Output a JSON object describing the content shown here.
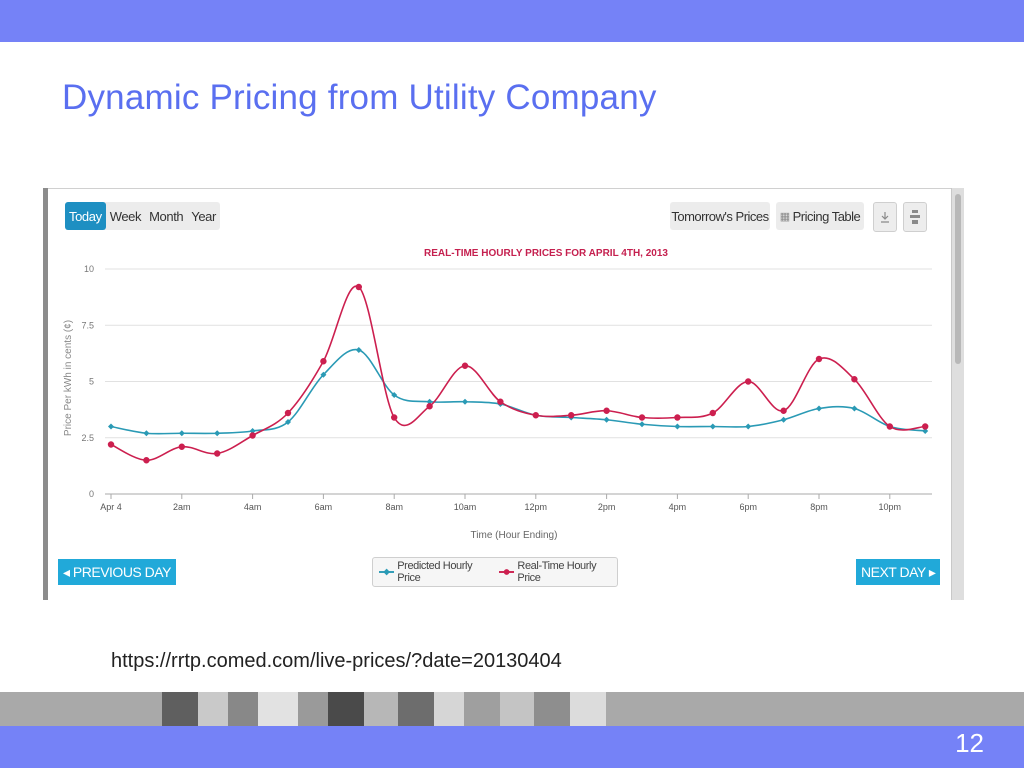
{
  "slide": {
    "title": "Dynamic Pricing from Utility Company",
    "url": "https://rrtp.comed.com/live-prices/?date=20130404",
    "page_number": "12"
  },
  "toolbar": {
    "ranges": [
      "Today",
      "Week",
      "Month",
      "Year"
    ],
    "active_range": "Today",
    "tomorrow_label": "Tomorrow's Prices",
    "pricing_table_label": "Pricing Table"
  },
  "nav": {
    "prev_label": "◂ PREVIOUS DAY",
    "next_label": "NEXT DAY ▸"
  },
  "colors": {
    "predicted": "#2a9ab5",
    "realtime": "#cc1f4f",
    "accent": "#21a9d9",
    "slide_bar": "#7582f7"
  },
  "chart_data": {
    "type": "line",
    "title": "REAL-TIME HOURLY PRICES FOR APRIL 4TH, 2013",
    "xlabel": "Time (Hour Ending)",
    "ylabel": "Price Per kWh in cents (¢)",
    "ylim": [
      0,
      10
    ],
    "yticks": [
      "0",
      "2.5",
      "5",
      "7.5",
      "10"
    ],
    "xticks": [
      "Apr 4",
      "2am",
      "4am",
      "6am",
      "8am",
      "10am",
      "12pm",
      "2pm",
      "4pm",
      "6pm",
      "8pm",
      "10pm"
    ],
    "x": [
      0,
      1,
      2,
      3,
      4,
      5,
      6,
      7,
      8,
      9,
      10,
      11,
      12,
      13,
      14,
      15,
      16,
      17,
      18,
      19,
      20,
      21,
      22,
      23
    ],
    "grid": true,
    "legend_position": "bottom",
    "series": [
      {
        "name": "Predicted Hourly Price",
        "values": [
          3.0,
          2.7,
          2.7,
          2.7,
          2.8,
          3.2,
          5.3,
          6.4,
          4.4,
          4.1,
          4.1,
          4.0,
          3.5,
          3.4,
          3.3,
          3.1,
          3.0,
          3.0,
          3.0,
          3.3,
          3.8,
          3.8,
          3.0,
          2.8
        ]
      },
      {
        "name": "Real-Time Hourly Price",
        "values": [
          2.2,
          1.5,
          2.1,
          1.8,
          2.6,
          3.6,
          5.9,
          9.2,
          3.4,
          3.9,
          5.7,
          4.1,
          3.5,
          3.5,
          3.7,
          3.4,
          3.4,
          3.6,
          5.0,
          3.7,
          6.0,
          5.1,
          3.0,
          3.0
        ]
      }
    ]
  }
}
